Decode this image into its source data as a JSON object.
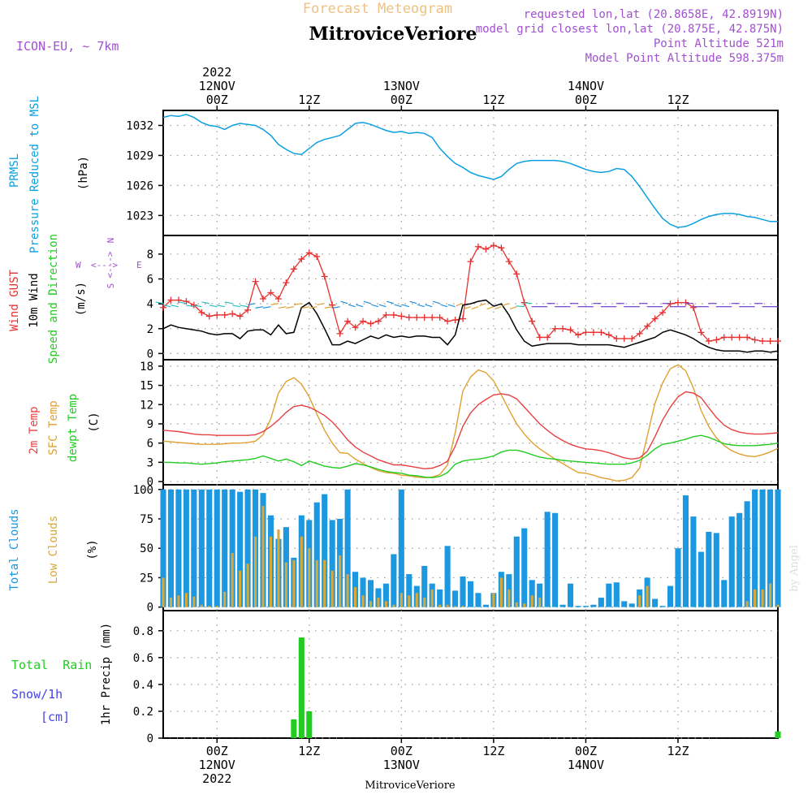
{
  "header": {
    "subtitle": "Forecast Meteogram",
    "station": "MitroviceVeriore",
    "model": "ICON-EU, ~ 7km",
    "requested": "requested lon,lat (20.8658E, 42.8919N)",
    "closest": "model grid closest lon,lat (20.875E, 42.875N)",
    "point_alt": "Point Altitude 521m",
    "model_alt": "Model Point Altitude 598.375m",
    "watermark": "by Angel",
    "footer_station": "MitroviceVeriore"
  },
  "time_axis": {
    "start_label": "2022-11-11 17Z",
    "hours": 80,
    "top_ticks": [
      {
        "hour": 7,
        "lines": [
          "2022",
          "12NOV",
          "00Z"
        ]
      },
      {
        "hour": 19,
        "lines": [
          "12Z"
        ]
      },
      {
        "hour": 31,
        "lines": [
          "13NOV",
          "00Z"
        ]
      },
      {
        "hour": 43,
        "lines": [
          "12Z"
        ]
      },
      {
        "hour": 55,
        "lines": [
          "14NOV",
          "00Z"
        ]
      },
      {
        "hour": 67,
        "lines": [
          "12Z"
        ]
      }
    ],
    "bottom_ticks": [
      {
        "hour": 7,
        "lines": [
          "00Z",
          "12NOV",
          "2022"
        ]
      },
      {
        "hour": 19,
        "lines": [
          "12Z"
        ]
      },
      {
        "hour": 31,
        "lines": [
          "00Z",
          "13NOV"
        ]
      },
      {
        "hour": 43,
        "lines": [
          "12Z"
        ]
      },
      {
        "hour": 55,
        "lines": [
          "00Z",
          "14NOV"
        ]
      },
      {
        "hour": 67,
        "lines": [
          "12Z"
        ]
      }
    ]
  },
  "colors": {
    "pressure": "#0aa0e0",
    "gust": "#e83030",
    "wind": "#000000",
    "wind_arrow_label": "#22cc22",
    "temp2m": "#e84040",
    "sfc_temp": "#e0a030",
    "dewpt": "#22cc22",
    "total_clouds": "#1b98e0",
    "low_clouds": "#d8a838",
    "rain": "#22cc22",
    "snow": "#4444ee",
    "purple": "#a050d0",
    "title_orange": "#f0c080",
    "grid": "#999999"
  },
  "panels": {
    "pressure": {
      "labels": [
        "PRMSL",
        "Pressure Reduced to MSL"
      ],
      "unit": "(hPa)"
    },
    "wind": {
      "labels": [
        "Wind GUST",
        "10m Wind",
        "Speed and Direction"
      ],
      "unit": "(m/s)",
      "compass": {
        "n": "N",
        "s": "S",
        "w": "W",
        "e": "E",
        "arrow": "<--->"
      }
    },
    "temp": {
      "labels": [
        "2m Temp",
        "SFC Temp",
        "dewpt Temp"
      ],
      "unit": "(C)"
    },
    "clouds": {
      "labels": [
        "Total Clouds",
        "Low Clouds"
      ],
      "unit": "(%)"
    },
    "precip": {
      "labels": [
        "Total Rain",
        "Snow/1h",
        "[cm]"
      ],
      "unit": "1hr Precip (mm)"
    }
  },
  "chart_data": [
    {
      "type": "line",
      "title": "PRMSL Pressure Reduced to MSL",
      "ylabel": "hPa",
      "ylim": [
        1021,
        1033.5
      ],
      "yticks": [
        1023,
        1026,
        1029,
        1032
      ],
      "series": [
        {
          "name": "PRMSL",
          "values": [
            1032.8,
            1033.0,
            1032.9,
            1033.1,
            1032.8,
            1032.3,
            1032.0,
            1031.9,
            1031.6,
            1032.0,
            1032.2,
            1032.1,
            1032.0,
            1031.6,
            1031.0,
            1030.1,
            1029.6,
            1029.2,
            1029.1,
            1029.7,
            1030.3,
            1030.6,
            1030.8,
            1031.0,
            1031.6,
            1032.2,
            1032.3,
            1032.1,
            1031.8,
            1031.5,
            1031.3,
            1031.4,
            1031.2,
            1031.3,
            1031.2,
            1030.8,
            1029.7,
            1028.9,
            1028.2,
            1027.8,
            1027.3,
            1027.0,
            1026.8,
            1026.6,
            1026.9,
            1027.6,
            1028.2,
            1028.4,
            1028.5,
            1028.5,
            1028.5,
            1028.5,
            1028.4,
            1028.2,
            1027.9,
            1027.6,
            1027.4,
            1027.3,
            1027.4,
            1027.7,
            1027.6,
            1026.9,
            1025.9,
            1024.8,
            1023.7,
            1022.7,
            1022.1,
            1021.8,
            1021.9,
            1022.2,
            1022.6,
            1022.9,
            1023.1,
            1023.2,
            1023.2,
            1023.1,
            1022.9,
            1022.8,
            1022.6,
            1022.4,
            1022.4
          ]
        }
      ]
    },
    {
      "type": "line",
      "title": "Wind GUST / 10m Wind Speed and Direction",
      "ylabel": "m/s",
      "ylim": [
        -0.5,
        9.5
      ],
      "yticks": [
        0,
        2,
        4,
        6,
        8
      ],
      "series": [
        {
          "name": "Wind GUST",
          "values": [
            3.7,
            4.3,
            4.3,
            4.2,
            3.9,
            3.3,
            3.0,
            3.1,
            3.1,
            3.2,
            3.0,
            3.5,
            5.8,
            4.4,
            4.9,
            4.4,
            5.7,
            6.8,
            7.6,
            8.1,
            7.8,
            6.2,
            3.9,
            1.6,
            2.6,
            2.1,
            2.6,
            2.4,
            2.6,
            3.1,
            3.1,
            3.0,
            2.9,
            2.9,
            2.9,
            2.9,
            2.9,
            2.6,
            2.7,
            2.8,
            7.4,
            8.6,
            8.4,
            8.7,
            8.5,
            7.4,
            6.4,
            4.1,
            2.6,
            1.3,
            1.3,
            2.0,
            2.0,
            1.9,
            1.5,
            1.7,
            1.7,
            1.7,
            1.5,
            1.2,
            1.2,
            1.2,
            1.6,
            2.2,
            2.8,
            3.3,
            4.0,
            4.1,
            4.1,
            3.7,
            1.7,
            1.0,
            1.1,
            1.3,
            1.3,
            1.3,
            1.3,
            1.1,
            1.0,
            1.0,
            1.0
          ]
        },
        {
          "name": "10m Wind",
          "values": [
            2.0,
            2.3,
            2.1,
            2.0,
            1.9,
            1.8,
            1.6,
            1.5,
            1.6,
            1.6,
            1.2,
            1.8,
            1.9,
            1.9,
            1.5,
            2.3,
            1.6,
            1.7,
            3.7,
            4.1,
            3.2,
            2.0,
            0.7,
            0.7,
            1.0,
            0.8,
            1.1,
            1.4,
            1.2,
            1.5,
            1.3,
            1.4,
            1.3,
            1.4,
            1.4,
            1.3,
            1.3,
            0.7,
            1.5,
            3.9,
            4.0,
            4.2,
            4.3,
            3.8,
            4.0,
            3.1,
            1.9,
            1.0,
            0.6,
            0.7,
            0.8,
            0.8,
            0.8,
            0.8,
            0.7,
            0.7,
            0.7,
            0.7,
            0.7,
            0.6,
            0.5,
            0.7,
            0.9,
            1.1,
            1.3,
            1.7,
            1.9,
            1.7,
            1.5,
            1.2,
            0.8,
            0.5,
            0.3,
            0.2,
            0.2,
            0.2,
            0.1,
            0.2,
            0.2,
            0.1,
            0.2
          ]
        }
      ]
    },
    {
      "type": "line",
      "title": "2m Temp / SFC Temp / dewpt Temp",
      "ylabel": "C",
      "ylim": [
        -0.5,
        19
      ],
      "yticks": [
        0,
        3,
        6,
        9,
        12,
        15,
        18
      ],
      "series": [
        {
          "name": "2m Temp",
          "values": [
            8.0,
            7.9,
            7.8,
            7.6,
            7.4,
            7.3,
            7.3,
            7.2,
            7.2,
            7.2,
            7.2,
            7.2,
            7.3,
            7.8,
            8.6,
            9.6,
            10.8,
            11.7,
            11.9,
            11.6,
            11.0,
            10.3,
            9.3,
            8.0,
            6.5,
            5.4,
            4.6,
            4.0,
            3.4,
            3.0,
            2.6,
            2.6,
            2.4,
            2.2,
            2.0,
            2.1,
            2.5,
            3.2,
            5.5,
            8.6,
            10.7,
            12.0,
            12.8,
            13.5,
            13.7,
            13.5,
            12.9,
            11.6,
            10.3,
            9.0,
            8.0,
            7.1,
            6.4,
            5.8,
            5.4,
            5.1,
            5.0,
            4.8,
            4.5,
            4.1,
            3.7,
            3.5,
            3.7,
            4.7,
            7.0,
            9.6,
            11.6,
            13.2,
            14.0,
            13.8,
            13.1,
            11.5,
            10.0,
            8.8,
            8.1,
            7.7,
            7.5,
            7.4,
            7.4,
            7.5,
            7.6
          ]
        },
        {
          "name": "SFC Temp",
          "values": [
            6.3,
            6.2,
            6.1,
            6.0,
            5.9,
            5.8,
            5.8,
            5.8,
            5.9,
            6.0,
            6.0,
            6.1,
            6.3,
            7.3,
            9.8,
            13.8,
            15.6,
            16.2,
            15.2,
            13.2,
            10.5,
            8.0,
            6.0,
            4.5,
            4.4,
            3.5,
            2.8,
            2.2,
            1.7,
            1.4,
            1.3,
            1.0,
            0.9,
            0.7,
            0.6,
            0.7,
            1.1,
            2.6,
            7.6,
            14.1,
            16.3,
            17.4,
            17.0,
            15.7,
            13.5,
            11.2,
            9.0,
            7.4,
            6.1,
            5.1,
            4.3,
            3.5,
            2.8,
            2.1,
            1.4,
            1.3,
            1.0,
            0.6,
            0.4,
            0.1,
            0.2,
            0.6,
            2.1,
            7.1,
            12.2,
            15.4,
            17.6,
            18.2,
            17.3,
            14.6,
            11.1,
            8.6,
            6.8,
            5.6,
            4.8,
            4.3,
            4.0,
            3.9,
            4.2,
            4.6,
            5.2
          ]
        },
        {
          "name": "dewpt Temp",
          "values": [
            3.0,
            3.0,
            2.9,
            2.9,
            2.8,
            2.7,
            2.8,
            2.9,
            3.1,
            3.2,
            3.3,
            3.4,
            3.6,
            4.0,
            3.6,
            3.2,
            3.5,
            3.1,
            2.5,
            3.2,
            2.8,
            2.4,
            2.2,
            2.1,
            2.4,
            2.8,
            2.6,
            2.3,
            1.9,
            1.6,
            1.4,
            1.3,
            1.0,
            0.9,
            0.7,
            0.6,
            0.8,
            1.4,
            2.7,
            3.2,
            3.4,
            3.5,
            3.7,
            4.0,
            4.6,
            4.9,
            4.9,
            4.6,
            4.2,
            3.8,
            3.6,
            3.5,
            3.3,
            3.2,
            3.1,
            3.0,
            2.9,
            2.8,
            2.7,
            2.7,
            2.7,
            2.9,
            3.3,
            4.1,
            5.1,
            5.8,
            6.0,
            6.3,
            6.6,
            7.0,
            7.2,
            6.9,
            6.4,
            5.9,
            5.7,
            5.6,
            5.6,
            5.6,
            5.7,
            5.8,
            6.0
          ]
        }
      ]
    },
    {
      "type": "bar",
      "title": "Total Clouds / Low Clouds",
      "ylabel": "%",
      "ylim": [
        -3,
        104
      ],
      "yticks": [
        0,
        25,
        50,
        75,
        100
      ],
      "series": [
        {
          "name": "Total Clouds",
          "values": [
            100,
            100,
            100,
            100,
            100,
            100,
            100,
            100,
            100,
            100,
            98,
            100,
            100,
            97,
            78,
            58,
            68,
            42,
            78,
            74,
            89,
            96,
            74,
            75,
            100,
            30,
            25,
            23,
            16,
            20,
            45,
            100,
            28,
            18,
            35,
            20,
            15,
            52,
            14,
            26,
            22,
            12,
            2,
            12,
            30,
            28,
            60,
            67,
            23,
            20,
            81,
            80,
            2,
            20,
            1,
            1,
            2,
            8,
            20,
            21,
            5,
            3,
            15,
            25,
            7,
            1,
            18,
            50,
            95,
            77,
            47,
            64,
            63,
            23,
            77,
            80,
            90,
            100,
            100,
            100,
            100
          ]
        },
        {
          "name": "Low Clouds",
          "values": [
            25,
            8,
            10,
            12,
            9,
            2,
            1,
            1,
            13,
            46,
            31,
            37,
            60,
            86,
            60,
            66,
            38,
            40,
            60,
            50,
            40,
            40,
            31,
            44,
            28,
            17,
            10,
            5,
            8,
            5,
            2,
            12,
            10,
            12,
            8,
            15,
            2,
            2,
            1,
            1,
            0,
            0,
            0,
            12,
            25,
            15,
            4,
            3,
            10,
            8,
            0,
            0,
            0,
            0,
            0,
            0,
            0,
            0,
            0,
            0,
            0,
            0,
            10,
            18,
            0,
            0,
            0,
            0,
            0,
            0,
            0,
            0,
            0,
            0,
            0,
            0,
            5,
            15,
            15,
            20,
            2
          ]
        }
      ]
    },
    {
      "type": "bar",
      "title": "1hr Precip",
      "ylabel": "mm",
      "ylim": [
        0,
        0.95
      ],
      "yticks": [
        0,
        0.2,
        0.4,
        0.6,
        0.8
      ],
      "ytick_labels": [
        "0",
        "0.2",
        "0.4",
        "0.6",
        "0.8"
      ],
      "series": [
        {
          "name": "Total Rain",
          "values": [
            {
              "hour": 17,
              "v": 0.14
            },
            {
              "hour": 18,
              "v": 0.75
            },
            {
              "hour": 19,
              "v": 0.2
            },
            {
              "hour": 80,
              "v": 0.05
            }
          ]
        }
      ]
    }
  ]
}
